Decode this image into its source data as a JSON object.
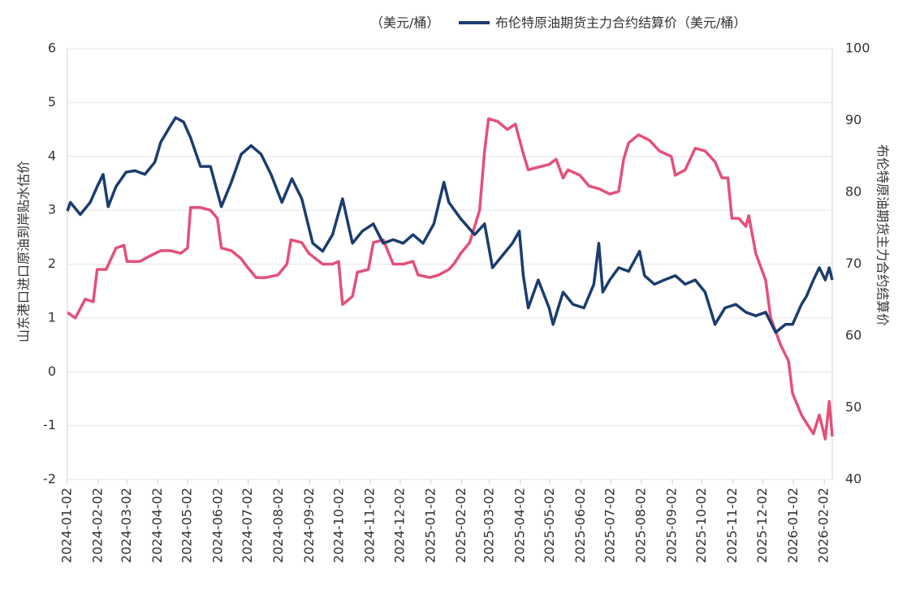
{
  "chart_data": {
    "type": "line",
    "y_label": "山东港口进口原油到岸贴水估价",
    "y2_label": "布伦特原油期货主力合约结算价",
    "xlim": [
      "2024-01-02",
      "2026-02-10"
    ],
    "xticks": [
      "2024-01-02",
      "2024-02-02",
      "2024-03-02",
      "2024-04-02",
      "2024-05-02",
      "2024-06-02",
      "2024-07-02",
      "2024-08-02",
      "2024-09-02",
      "2024-10-02",
      "2024-11-02",
      "2024-12-02",
      "2025-01-02",
      "2025-02-02",
      "2025-03-02",
      "2025-04-02",
      "2025-05-02",
      "2025-06-02",
      "2025-07-02",
      "2025-08-02",
      "2025-09-02",
      "2025-10-02",
      "2025-11-02",
      "2025-12-02",
      "2026-01-02",
      "2026-02-02"
    ],
    "ylim": [
      -2,
      6
    ],
    "yticks": [
      -2,
      -1,
      0,
      1,
      2,
      3,
      4,
      5,
      6
    ],
    "y2lim": [
      40,
      100
    ],
    "y2ticks": [
      40,
      50,
      60,
      70,
      80,
      90,
      100
    ],
    "grid": true,
    "series": [
      {
        "name": "（美元/桶）",
        "color": "#e4507a",
        "axis": "y",
        "x": [
          "2024-01-02",
          "2024-01-10",
          "2024-01-20",
          "2024-01-28",
          "2024-02-01",
          "2024-02-10",
          "2024-02-20",
          "2024-02-28",
          "2024-03-02",
          "2024-03-15",
          "2024-03-25",
          "2024-04-05",
          "2024-04-15",
          "2024-04-25",
          "2024-05-02",
          "2024-05-05",
          "2024-05-15",
          "2024-05-25",
          "2024-06-01",
          "2024-06-05",
          "2024-06-15",
          "2024-06-25",
          "2024-07-01",
          "2024-07-10",
          "2024-07-20",
          "2024-08-01",
          "2024-08-10",
          "2024-08-14",
          "2024-08-25",
          "2024-09-01",
          "2024-09-15",
          "2024-09-25",
          "2024-10-01",
          "2024-10-05",
          "2024-10-15",
          "2024-10-20",
          "2024-10-31",
          "2024-11-05",
          "2024-11-15",
          "2024-11-25",
          "2024-12-05",
          "2024-12-15",
          "2024-12-20",
          "2025-01-01",
          "2025-01-10",
          "2025-01-20",
          "2025-01-25",
          "2025-02-01",
          "2025-02-10",
          "2025-02-20",
          "2025-02-25",
          "2025-03-01",
          "2025-03-10",
          "2025-03-20",
          "2025-03-28",
          "2025-04-05",
          "2025-04-10",
          "2025-04-20",
          "2025-05-01",
          "2025-05-08",
          "2025-05-15",
          "2025-05-20",
          "2025-06-01",
          "2025-06-10",
          "2025-06-20",
          "2025-07-01",
          "2025-07-10",
          "2025-07-15",
          "2025-07-20",
          "2025-07-30",
          "2025-08-10",
          "2025-08-20",
          "2025-09-01",
          "2025-09-05",
          "2025-09-15",
          "2025-09-25",
          "2025-10-05",
          "2025-10-15",
          "2025-10-22",
          "2025-10-28",
          "2025-11-01",
          "2025-11-08",
          "2025-11-15",
          "2025-11-18",
          "2025-11-25",
          "2025-12-05",
          "2025-12-10",
          "2025-12-20",
          "2025-12-28",
          "2026-01-01",
          "2026-01-10",
          "2026-01-15",
          "2026-01-22",
          "2026-01-28",
          "2026-02-03",
          "2026-02-07",
          "2026-02-10"
        ],
        "values": [
          1.1,
          1.0,
          1.35,
          1.3,
          1.9,
          1.9,
          2.3,
          2.35,
          2.05,
          2.05,
          2.15,
          2.25,
          2.25,
          2.2,
          2.3,
          3.05,
          3.05,
          3.0,
          2.85,
          2.3,
          2.25,
          2.1,
          1.95,
          1.75,
          1.75,
          1.8,
          2.0,
          2.45,
          2.4,
          2.2,
          2.0,
          2.0,
          2.05,
          1.25,
          1.4,
          1.85,
          1.9,
          2.4,
          2.45,
          2.0,
          2.0,
          2.05,
          1.8,
          1.75,
          1.8,
          1.9,
          2.0,
          2.2,
          2.4,
          3.0,
          4.1,
          4.7,
          4.65,
          4.5,
          4.6,
          4.05,
          3.75,
          3.8,
          3.85,
          3.95,
          3.6,
          3.75,
          3.65,
          3.45,
          3.4,
          3.3,
          3.35,
          3.95,
          4.25,
          4.4,
          4.3,
          4.1,
          4.0,
          3.65,
          3.75,
          4.15,
          4.1,
          3.9,
          3.6,
          3.6,
          2.85,
          2.85,
          2.7,
          2.9,
          2.2,
          1.7,
          1.0,
          0.5,
          0.2,
          -0.4,
          -0.8,
          -0.95,
          -1.15,
          -0.8,
          -1.25,
          -0.55,
          -1.2
        ]
      },
      {
        "name": "布伦特原油期货主力合约结算价（美元/桶）",
        "color": "#1b3d6e",
        "axis": "y2",
        "x": [
          "2024-01-02",
          "2024-01-05",
          "2024-01-15",
          "2024-01-25",
          "2024-02-01",
          "2024-02-07",
          "2024-02-12",
          "2024-02-20",
          "2024-03-01",
          "2024-03-10",
          "2024-03-20",
          "2024-03-30",
          "2024-04-05",
          "2024-04-15",
          "2024-04-20",
          "2024-04-28",
          "2024-05-05",
          "2024-05-15",
          "2024-05-25",
          "2024-06-05",
          "2024-06-15",
          "2024-06-25",
          "2024-07-05",
          "2024-07-15",
          "2024-07-25",
          "2024-08-05",
          "2024-08-15",
          "2024-08-25",
          "2024-09-05",
          "2024-09-15",
          "2024-09-25",
          "2024-10-05",
          "2024-10-15",
          "2024-10-25",
          "2024-11-05",
          "2024-11-15",
          "2024-11-25",
          "2024-12-05",
          "2024-12-15",
          "2024-12-25",
          "2025-01-05",
          "2025-01-15",
          "2025-01-20",
          "2025-02-01",
          "2025-02-15",
          "2025-02-25",
          "2025-03-05",
          "2025-03-15",
          "2025-03-25",
          "2025-04-01",
          "2025-04-05",
          "2025-04-10",
          "2025-04-20",
          "2025-05-01",
          "2025-05-05",
          "2025-05-15",
          "2025-05-25",
          "2025-06-05",
          "2025-06-15",
          "2025-06-20",
          "2025-06-24",
          "2025-07-01",
          "2025-07-10",
          "2025-07-20",
          "2025-07-31",
          "2025-08-05",
          "2025-08-15",
          "2025-08-25",
          "2025-09-05",
          "2025-09-15",
          "2025-09-25",
          "2025-10-05",
          "2025-10-15",
          "2025-10-25",
          "2025-11-05",
          "2025-11-15",
          "2025-11-25",
          "2025-12-05",
          "2025-12-15",
          "2025-12-25",
          "2026-01-01",
          "2026-01-10",
          "2026-01-15",
          "2026-01-22",
          "2026-01-28",
          "2026-02-03",
          "2026-02-07",
          "2026-02-10"
        ],
        "values": [
          77.4,
          78.6,
          76.9,
          78.6,
          80.8,
          82.5,
          78,
          80.8,
          82.8,
          83,
          82.5,
          84.2,
          87,
          89.3,
          90.4,
          89.8,
          87.6,
          83.6,
          83.6,
          78,
          81.4,
          85.3,
          86.5,
          85.3,
          82.5,
          78.6,
          81.9,
          79.1,
          72.9,
          71.8,
          74.1,
          79.1,
          72.9,
          74.6,
          75.6,
          72.9,
          73.4,
          72.9,
          74.1,
          72.9,
          75.6,
          81.4,
          78.6,
          76.3,
          74.1,
          75.6,
          69.5,
          71.2,
          72.9,
          74.6,
          68.4,
          63.9,
          67.8,
          63.9,
          61.6,
          66.1,
          64.4,
          63.9,
          67.2,
          72.9,
          66.1,
          67.8,
          69.5,
          69,
          71.8,
          68.4,
          67.2,
          67.8,
          68.4,
          67.2,
          67.8,
          66.1,
          61.6,
          63.9,
          64.4,
          63.3,
          62.8,
          63.3,
          60.5,
          61.6,
          61.6,
          64.4,
          65.5,
          67.8,
          69.5,
          67.8,
          69.5,
          67.8
        ]
      }
    ]
  }
}
